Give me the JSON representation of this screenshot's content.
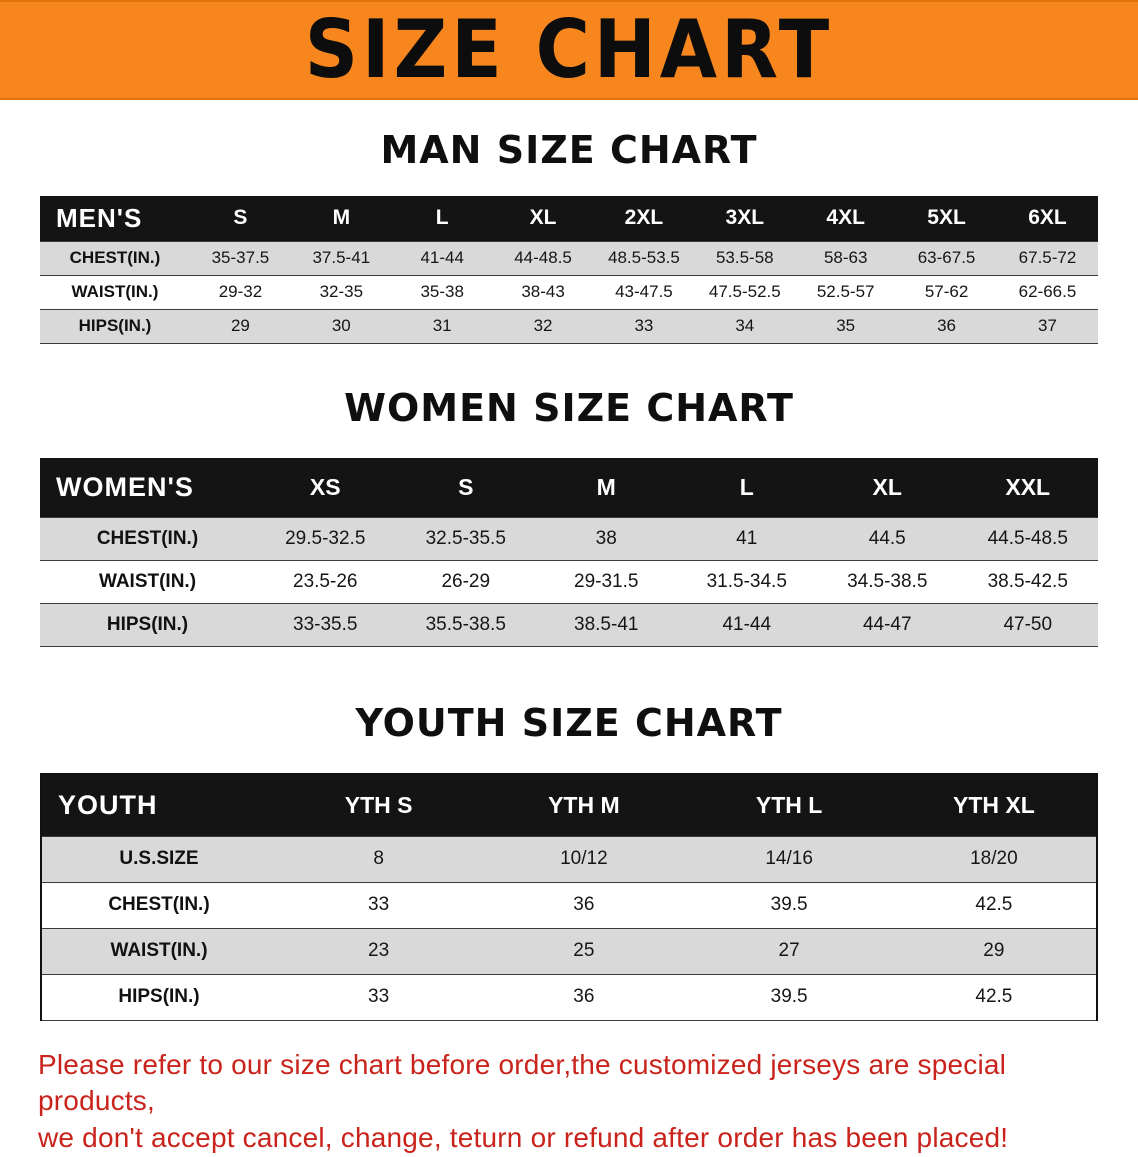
{
  "banner": {
    "title": "SIZE CHART"
  },
  "colors": {
    "banner_orange": "#f6861d",
    "table_header_black": "#141414",
    "row_stripe_gray": "#d9d9d9",
    "note_red": "#c9231c"
  },
  "sections": [
    {
      "id": "men",
      "heading": "MAN SIZE CHART",
      "table": {
        "header": [
          "MEN'S",
          "S",
          "M",
          "L",
          "XL",
          "2XL",
          "3XL",
          "4XL",
          "5XL",
          "6XL"
        ],
        "rows": [
          [
            "CHEST(IN.)",
            "35-37.5",
            "37.5-41",
            "41-44",
            "44-48.5",
            "48.5-53.5",
            "53.5-58",
            "58-63",
            "63-67.5",
            "67.5-72"
          ],
          [
            "WAIST(IN.)",
            "29-32",
            "32-35",
            "35-38",
            "38-43",
            "43-47.5",
            "47.5-52.5",
            "52.5-57",
            "57-62",
            "62-66.5"
          ],
          [
            "HIPS(IN.)",
            "29",
            "30",
            "31",
            "32",
            "33",
            "34",
            "35",
            "36",
            "37"
          ]
        ]
      }
    },
    {
      "id": "women",
      "heading": "WOMEN SIZE CHART",
      "table": {
        "header": [
          "WOMEN'S",
          "XS",
          "S",
          "M",
          "L",
          "XL",
          "XXL"
        ],
        "rows": [
          [
            "CHEST(IN.)",
            "29.5-32.5",
            "32.5-35.5",
            "38",
            "41",
            "44.5",
            "44.5-48.5"
          ],
          [
            "WAIST(IN.)",
            "23.5-26",
            "26-29",
            "29-31.5",
            "31.5-34.5",
            "34.5-38.5",
            "38.5-42.5"
          ],
          [
            "HIPS(IN.)",
            "33-35.5",
            "35.5-38.5",
            "38.5-41",
            "41-44",
            "44-47",
            "47-50"
          ]
        ]
      }
    },
    {
      "id": "youth",
      "heading": "YOUTH SIZE CHART",
      "table": {
        "header": [
          "YOUTH",
          "YTH S",
          "YTH M",
          "YTH L",
          "YTH XL"
        ],
        "rows": [
          [
            "U.S.SIZE",
            "8",
            "10/12",
            "14/16",
            "18/20"
          ],
          [
            "CHEST(IN.)",
            "33",
            "36",
            "39.5",
            "42.5"
          ],
          [
            "WAIST(IN.)",
            "23",
            "25",
            "27",
            "29"
          ],
          [
            "HIPS(IN.)",
            "33",
            "36",
            "39.5",
            "42.5"
          ]
        ]
      }
    }
  ],
  "note": {
    "line1": "Please refer to our size chart before order,the customized jerseys are special products,",
    "line2": "we don't accept cancel, change, teturn or refund after order has been placed!"
  }
}
